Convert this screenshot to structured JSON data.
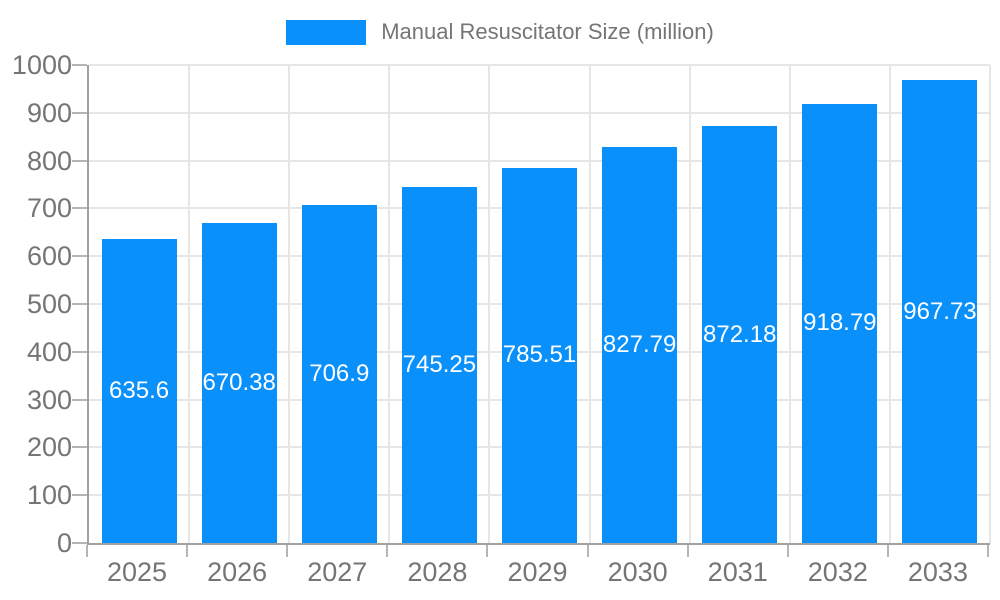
{
  "legend": {
    "label": "Manual Resuscitator Size (million)"
  },
  "chart_data": {
    "type": "bar",
    "title": "Manual Resuscitator Size (million)",
    "categories": [
      "2025",
      "2026",
      "2027",
      "2028",
      "2029",
      "2030",
      "2031",
      "2032",
      "2033"
    ],
    "values": [
      635.6,
      670.38,
      706.9,
      745.25,
      785.51,
      827.79,
      872.18,
      918.79,
      967.73
    ],
    "value_labels": [
      "635.6",
      "670.38",
      "706.9",
      "745.25",
      "785.51",
      "827.79",
      "872.18",
      "918.79",
      "967.73"
    ],
    "series_name": "Manual Resuscitator Size (million)",
    "xlabel": "",
    "ylabel": "",
    "ylim": [
      0,
      1000
    ],
    "yticks": [
      0,
      100,
      200,
      300,
      400,
      500,
      600,
      700,
      800,
      900,
      1000
    ],
    "grid": true,
    "legend_position": "top",
    "colors": {
      "bar": "#0a90fb",
      "value_label": "#ffffff",
      "axis_text": "#757575",
      "grid_line": "#e6e6e6",
      "axis_line": "#a0a0a0",
      "tick_mark": "#b5b5b5"
    }
  }
}
